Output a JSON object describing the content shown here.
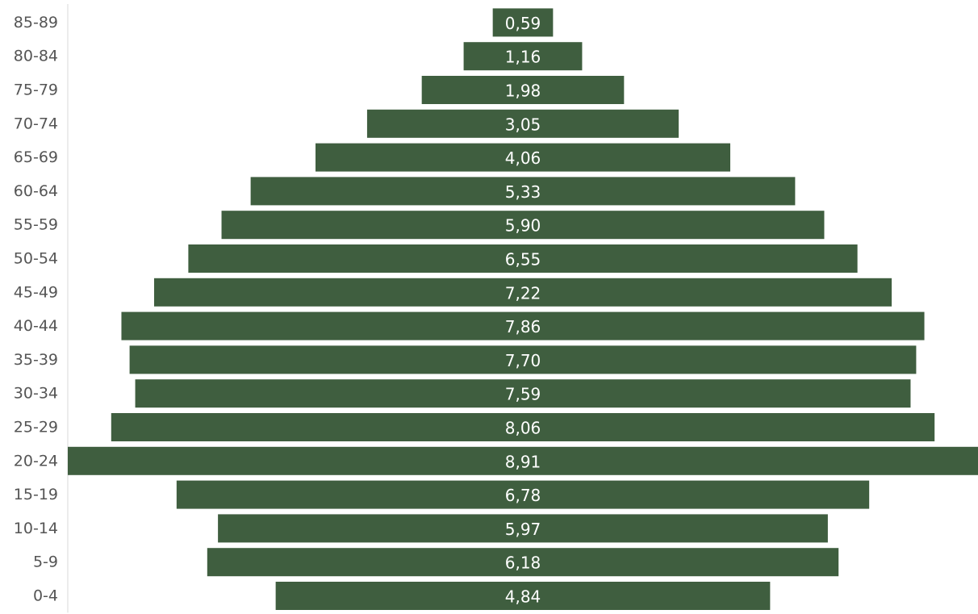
{
  "chart_data": {
    "type": "bar",
    "orientation": "horizontal",
    "layout": "centered-pyramid",
    "bar_color": "#3f5e3f",
    "axis_color": "#d9d9d9",
    "categories": [
      "85-89",
      "80-84",
      "75-79",
      "70-74",
      "65-69",
      "60-64",
      "55-59",
      "50-54",
      "45-49",
      "40-44",
      "35-39",
      "30-34",
      "25-29",
      "20-24",
      "15-19",
      "10-14",
      "5-9",
      "0-4"
    ],
    "values": [
      0.59,
      1.16,
      1.98,
      3.05,
      4.06,
      5.33,
      5.9,
      6.55,
      7.22,
      7.86,
      7.7,
      7.59,
      8.06,
      8.91,
      6.78,
      5.97,
      6.18,
      4.84
    ],
    "data_labels": [
      "0,59",
      "1,16",
      "1,98",
      "3,05",
      "4,06",
      "5,33",
      "5,90",
      "6,55",
      "7,22",
      "7,86",
      "7,70",
      "7,59",
      "8,06",
      "8,91",
      "6,78",
      "5,97",
      "6,18",
      "4,84"
    ],
    "xlim": [
      0,
      8.91
    ],
    "grid": false,
    "legend": "none"
  }
}
